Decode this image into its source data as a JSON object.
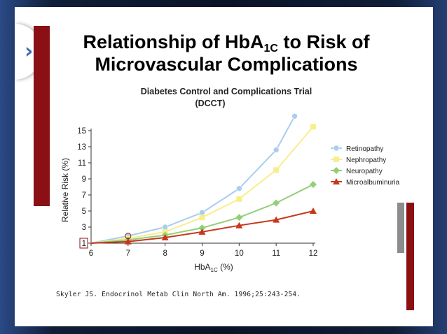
{
  "slide": {
    "title_line1_prefix": "Relationship of HbA",
    "title_line1_sub": "1C",
    "title_line1_suffix": " to Risk of",
    "title_line2": "Microvascular Complications",
    "nav_arrow": "›",
    "citation": "Skyler JS. Endocrinol Metab Clin North Am. 1996;25:243-254."
  },
  "colors": {
    "accent_red": "#8b1014",
    "grey": "#8c8c8c",
    "nav_arrow": "#3b6fb5"
  },
  "chart_data": {
    "type": "line",
    "title_line1": "Diabetes Control and Complications Trial",
    "title_line2": "(DCCT)",
    "xlabel_prefix": "HbA",
    "xlabel_sub": "1C",
    "xlabel_suffix": " (%)",
    "ylabel": "Relative Risk (%)",
    "x_ticks": [
      6,
      7,
      8,
      9,
      10,
      11,
      12
    ],
    "y_ticks": [
      1,
      3,
      5,
      7,
      9,
      11,
      13,
      15
    ],
    "xlim": [
      6,
      12
    ],
    "ylim": [
      1,
      15.6
    ],
    "grid": false,
    "legend_position": "right",
    "series": [
      {
        "name": "Retinopathy",
        "color": "#a9cdf0",
        "marker": "circle",
        "x": [
          6,
          7,
          8,
          9,
          10,
          11,
          11.5
        ],
        "y": [
          1,
          1.9,
          3.0,
          4.8,
          7.8,
          12.6,
          16.8
        ]
      },
      {
        "name": "Nephropathy",
        "color": "#f7ee8c",
        "marker": "square",
        "x": [
          6,
          7,
          8,
          9,
          10,
          11,
          12
        ],
        "y": [
          1,
          1.6,
          2.4,
          4.2,
          6.5,
          10.1,
          15.5
        ]
      },
      {
        "name": "Neuropathy",
        "color": "#92cf77",
        "marker": "diamond",
        "x": [
          6,
          7,
          8,
          9,
          10,
          11,
          12
        ],
        "y": [
          1,
          1.4,
          2.0,
          2.9,
          4.2,
          6.0,
          8.3
        ]
      },
      {
        "name": "Microalbuminuria",
        "color": "#c8371c",
        "marker": "triangle",
        "x": [
          6,
          7,
          8,
          9,
          10,
          11,
          12
        ],
        "y": [
          1,
          1.2,
          1.7,
          2.4,
          3.2,
          3.9,
          5.0
        ]
      }
    ]
  }
}
